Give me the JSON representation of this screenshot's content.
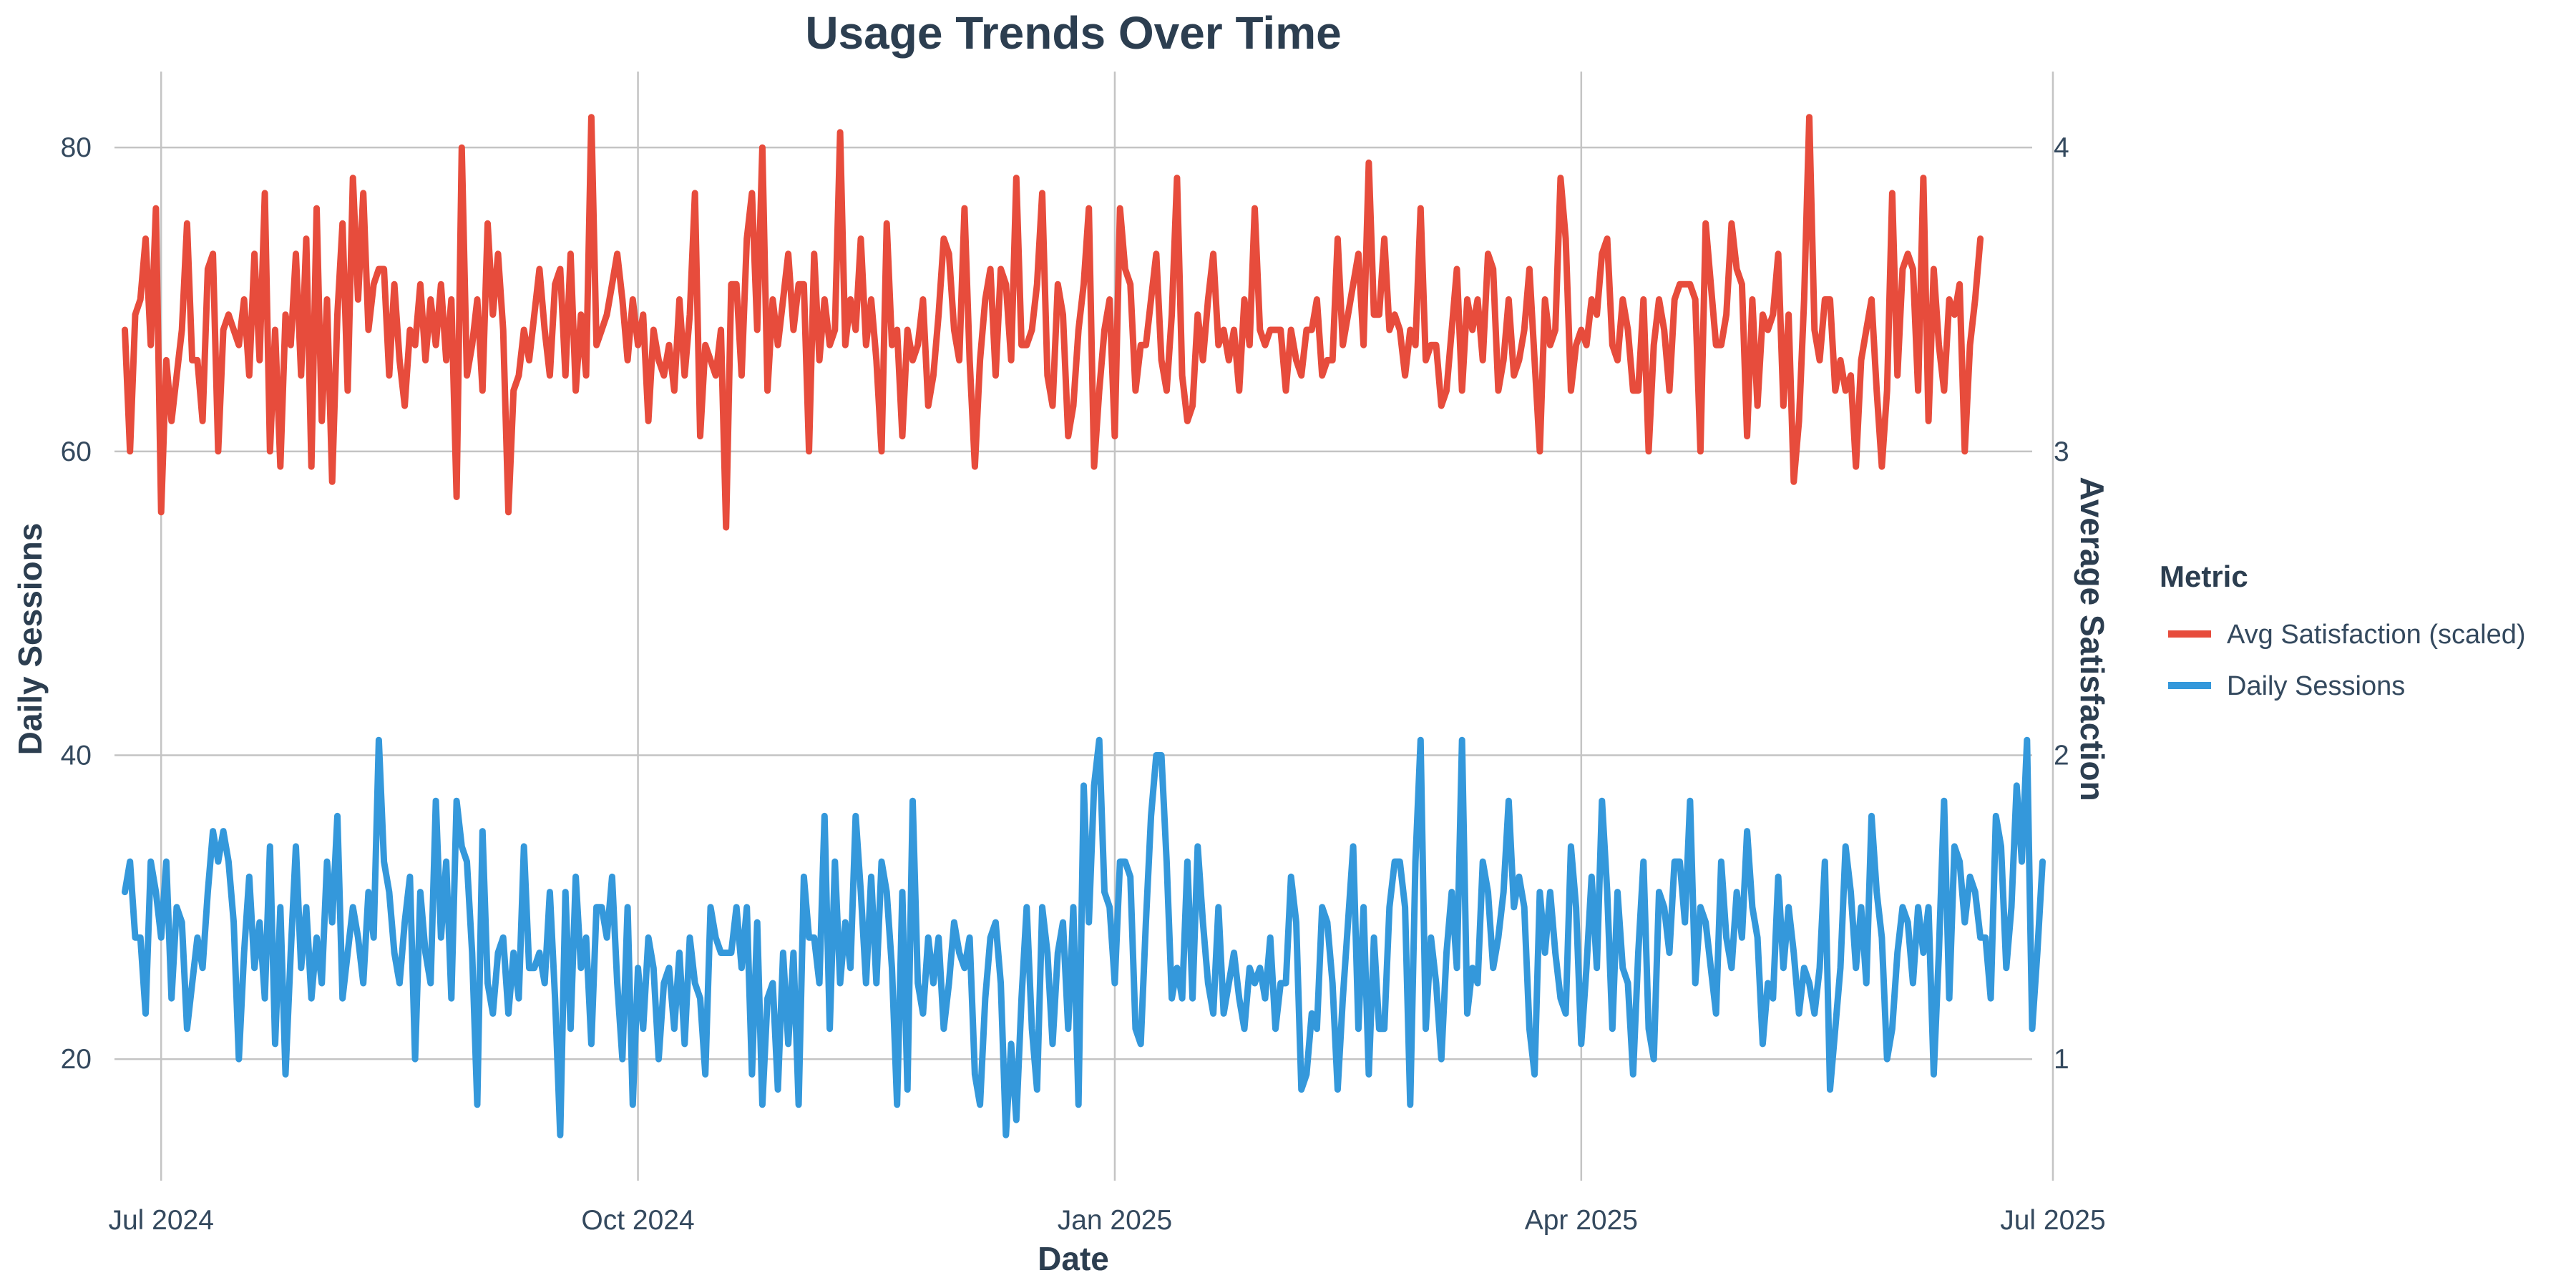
{
  "chart_data": {
    "type": "line",
    "title": "Usage Trends Over Time",
    "xlabel": "Date",
    "ylabel": "Daily Sessions",
    "y2label": "Average Satisfaction",
    "xlim": [
      "2024-06-22",
      "2025-06-27"
    ],
    "ylim": [
      12,
      85
    ],
    "y2lim": [
      0.6,
      4.25
    ],
    "x_ticks": [
      {
        "date": "2024-07-01",
        "label": "Jul 2024"
      },
      {
        "date": "2024-10-01",
        "label": "Oct 2024"
      },
      {
        "date": "2025-01-01",
        "label": "Jan 2025"
      },
      {
        "date": "2025-04-01",
        "label": "Apr 2025"
      },
      {
        "date": "2025-07-01",
        "label": "Jul 2025"
      }
    ],
    "y_ticks": [
      20,
      40,
      60,
      80
    ],
    "y2_ticks": [
      1,
      2,
      3,
      4
    ],
    "grid": true,
    "legend": {
      "title": "Metric",
      "placement": "right"
    },
    "start_date": "2024-06-24",
    "series": [
      {
        "name": "Avg Satisfaction (scaled)",
        "axis": "left",
        "color": "#e74c3c",
        "values": [
          68,
          60,
          69,
          70,
          74,
          67,
          76,
          56,
          66,
          62,
          65,
          68,
          75,
          66,
          66,
          62,
          72,
          73,
          60,
          68,
          69,
          68,
          67,
          70,
          65,
          73,
          66,
          77,
          60,
          68,
          59,
          69,
          67,
          73,
          65,
          74,
          59,
          76,
          62,
          70,
          58,
          69,
          75,
          64,
          78,
          70,
          77,
          68,
          71,
          72,
          72,
          65,
          71,
          66,
          63,
          68,
          67,
          71,
          66,
          70,
          67,
          71,
          66,
          70,
          57,
          80,
          65,
          67,
          70,
          64,
          75,
          69,
          73,
          68,
          56,
          64,
          65,
          68,
          66,
          69,
          72,
          68,
          65,
          71,
          72,
          65,
          73,
          64,
          69,
          65,
          82,
          67,
          68,
          69,
          71,
          73,
          70,
          66,
          70,
          67,
          69,
          62,
          68,
          66,
          65,
          67,
          64,
          70,
          65,
          69,
          77,
          61,
          67,
          66,
          65,
          68,
          55,
          71,
          71,
          65,
          74,
          77,
          68,
          80,
          64,
          70,
          67,
          70,
          73,
          68,
          71,
          71,
          60,
          73,
          66,
          70,
          67,
          68,
          81,
          67,
          70,
          68,
          74,
          67,
          70,
          66,
          60,
          75,
          67,
          68,
          61,
          68,
          66,
          67,
          70,
          63,
          65,
          69,
          74,
          73,
          68,
          66,
          76,
          66,
          59,
          66,
          70,
          72,
          65,
          72,
          71,
          66,
          78,
          67,
          67,
          68,
          71,
          77,
          65,
          63,
          71,
          69,
          61,
          63,
          68,
          71,
          76,
          59,
          64,
          68,
          70,
          61,
          76,
          72,
          71,
          64,
          67,
          67,
          70,
          73,
          66,
          64,
          69,
          78,
          65,
          62,
          63,
          69,
          66,
          70,
          73,
          67,
          68,
          66,
          68,
          64,
          70,
          67,
          76,
          68,
          67,
          68,
          68,
          68,
          64,
          68,
          66,
          65,
          68,
          68,
          70,
          65,
          66,
          66,
          74,
          67,
          69,
          71,
          73,
          67,
          79,
          69,
          69,
          74,
          68,
          69,
          68,
          65,
          68,
          67,
          76,
          66,
          67,
          67,
          63,
          64,
          68,
          72,
          64,
          70,
          68,
          70,
          66,
          73,
          72,
          64,
          66,
          70,
          65,
          66,
          68,
          72,
          66,
          60,
          70,
          67,
          68,
          78,
          74,
          64,
          67,
          68,
          67,
          70,
          69,
          73,
          74,
          67,
          66,
          70,
          68,
          64,
          64,
          70,
          60,
          67,
          70,
          68,
          64,
          70,
          71,
          71,
          71,
          70,
          60,
          75,
          71,
          67,
          67,
          69,
          75,
          72,
          71,
          61,
          70,
          63,
          69,
          68,
          69,
          73,
          63,
          69,
          58,
          62,
          70,
          82,
          68,
          66,
          70,
          70,
          64,
          66,
          64,
          65,
          59,
          66,
          68,
          70,
          64,
          59,
          64,
          77,
          65,
          72,
          73,
          72,
          64,
          78,
          62,
          72,
          67,
          64,
          70,
          69,
          71,
          60,
          67,
          70,
          74
        ]
      },
      {
        "name": "Daily Sessions",
        "axis": "left",
        "color": "#3498db",
        "values": [
          31,
          33,
          28,
          28,
          23,
          33,
          31,
          28,
          33,
          24,
          30,
          29,
          22,
          25,
          28,
          26,
          31,
          35,
          33,
          35,
          33,
          29,
          20,
          27,
          32,
          26,
          29,
          24,
          34,
          21,
          30,
          19,
          27,
          34,
          26,
          30,
          24,
          28,
          25,
          33,
          29,
          36,
          24,
          27,
          30,
          28,
          25,
          31,
          28,
          41,
          33,
          31,
          27,
          25,
          29,
          32,
          20,
          31,
          27,
          25,
          37,
          28,
          33,
          24,
          37,
          34,
          33,
          27,
          17,
          35,
          25,
          23,
          27,
          28,
          23,
          27,
          24,
          34,
          26,
          26,
          27,
          25,
          31,
          24,
          15,
          31,
          22,
          32,
          26,
          28,
          21,
          30,
          30,
          28,
          32,
          25,
          20,
          30,
          17,
          26,
          22,
          28,
          26,
          20,
          25,
          26,
          22,
          27,
          21,
          28,
          25,
          24,
          19,
          30,
          28,
          27,
          27,
          27,
          30,
          26,
          30,
          19,
          29,
          17,
          24,
          25,
          18,
          27,
          21,
          27,
          17,
          32,
          28,
          28,
          25,
          36,
          22,
          33,
          25,
          29,
          26,
          36,
          31,
          25,
          32,
          25,
          33,
          31,
          26,
          17,
          31,
          18,
          37,
          25,
          23,
          28,
          25,
          28,
          22,
          25,
          29,
          27,
          26,
          28,
          19,
          17,
          24,
          28,
          29,
          25,
          15,
          21,
          16,
          24,
          30,
          22,
          18,
          30,
          27,
          21,
          27,
          29,
          22,
          30,
          17,
          38,
          29,
          38,
          41,
          31,
          30,
          25,
          33,
          33,
          32,
          22,
          21,
          29,
          36,
          40,
          40,
          33,
          24,
          26,
          24,
          33,
          24,
          34,
          29,
          25,
          23,
          30,
          23,
          25,
          27,
          24,
          22,
          26,
          25,
          26,
          24,
          28,
          22,
          25,
          25,
          32,
          29,
          18,
          19,
          23,
          22,
          30,
          29,
          25,
          18,
          24,
          29,
          34,
          22,
          30,
          19,
          28,
          22,
          22,
          30,
          33,
          33,
          30,
          17,
          33,
          41,
          22,
          28,
          25,
          20,
          27,
          31,
          26,
          41,
          23,
          26,
          25,
          33,
          31,
          26,
          28,
          31,
          37,
          30,
          32,
          30,
          22,
          19,
          31,
          27,
          31,
          27,
          24,
          23,
          34,
          30,
          21,
          26,
          32,
          26,
          37,
          31,
          22,
          31,
          26,
          25,
          19,
          27,
          33,
          22,
          20,
          31,
          30,
          27,
          33,
          33,
          29,
          37,
          25,
          30,
          29,
          26,
          23,
          33,
          28,
          26,
          31,
          28,
          35,
          30,
          28,
          21,
          25,
          24,
          32,
          26,
          30,
          27,
          23,
          26,
          25,
          23,
          26,
          33,
          18,
          22,
          26,
          34,
          31,
          26,
          30,
          25,
          36,
          31,
          28,
          20,
          22,
          27,
          30,
          29,
          25,
          30,
          27,
          30,
          19,
          27,
          37,
          24,
          34,
          33,
          29,
          32,
          31,
          28,
          28,
          24,
          36,
          34,
          26,
          30,
          38,
          33,
          41,
          22,
          27,
          33
        ]
      }
    ]
  }
}
